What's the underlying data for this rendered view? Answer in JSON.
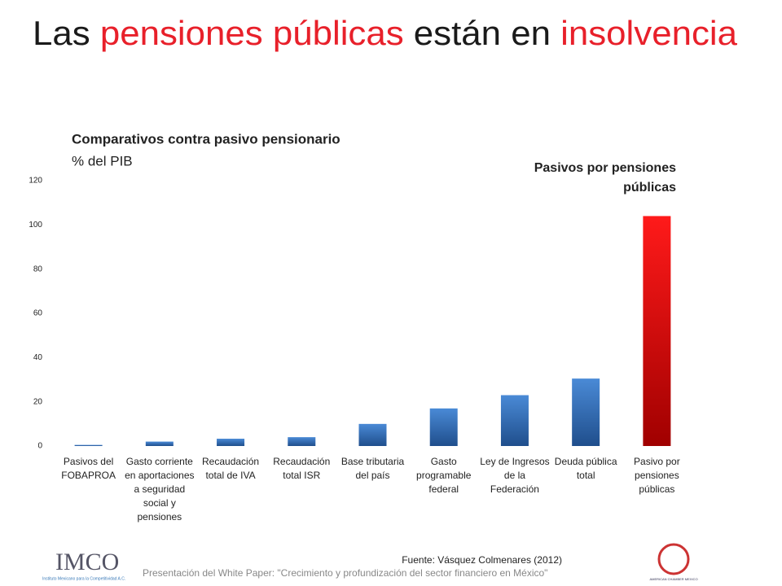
{
  "title_parts": [
    {
      "text": "Las",
      "color": "#1a1a1a"
    },
    {
      "text": "pensiones públicas",
      "color": "#e8202a"
    },
    {
      "text": "están en",
      "color": "#1a1a1a"
    },
    {
      "text": "insolvencia",
      "color": "#e8202a"
    }
  ],
  "chart_data": {
    "type": "bar",
    "title": "Comparativos contra pasivo pensionario",
    "y_label": "% del PIB",
    "categories": [
      "Pasivos del FOBAPROA",
      "Gasto corriente en aportaciones a seguridad social y pensiones",
      "Recaudación total de IVA",
      "Recaudación total ISR",
      "Base tributaria del país",
      "Gasto programable federal",
      "Ley de Ingresos de la Federación",
      "Deuda pública total",
      "Pasivo por pensiones públicas"
    ],
    "values": [
      0.5,
      2,
      3.3,
      4,
      10,
      17,
      23,
      30.5,
      104
    ],
    "colors": [
      "#4a8ad6",
      "#4a8ad6",
      "#4a8ad6",
      "#4a8ad6",
      "#4a8ad6",
      "#4a8ad6",
      "#4a8ad6",
      "#4a8ad6",
      "#ff1a1a"
    ],
    "colors_dark": [
      "#1f4e8c",
      "#1f4e8c",
      "#1f4e8c",
      "#1f4e8c",
      "#1f4e8c",
      "#1f4e8c",
      "#1f4e8c",
      "#1f4e8c",
      "#a00000"
    ],
    "ylim": [
      0,
      120
    ],
    "yticks": [
      0,
      20,
      40,
      60,
      80,
      100,
      120
    ],
    "grid": false,
    "annotation": "Pasivos por pensiones públicas"
  },
  "source": "Fuente: Vásquez Colmenares (2012)",
  "footer": "Presentación del White Paper: \"Crecimiento y profundización del sector financiero en México\"",
  "logo_left": {
    "name": "IMCO",
    "caption": "Instituto Mexicano para la Competitividad A.C."
  },
  "logo_right": {
    "caption": "AMERICAN CHAMBER MEXICO"
  }
}
